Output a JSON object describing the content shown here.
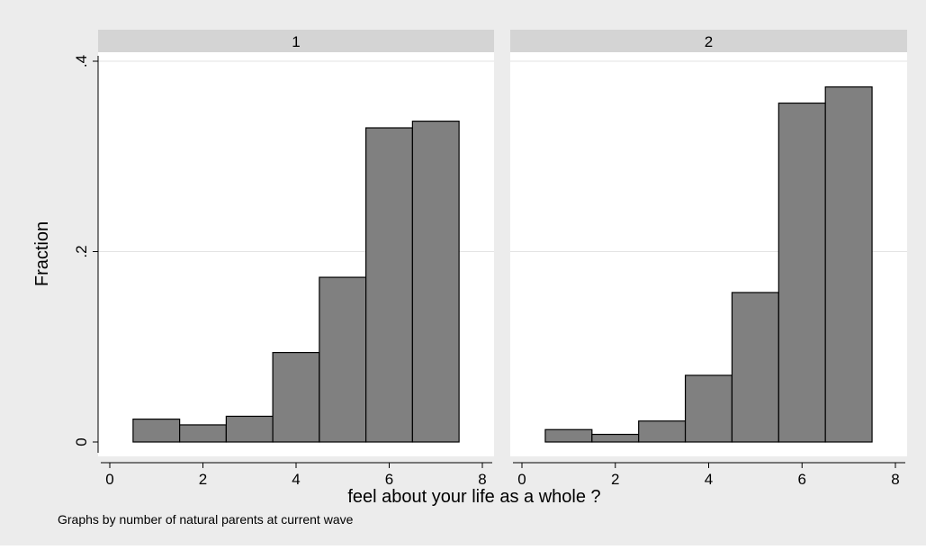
{
  "chart_data": {
    "type": "bar",
    "ylabel": "Fraction",
    "xlabel": "feel about your life as a whole ?",
    "note": "Graphs by number of natural parents at current wave",
    "xlim": [
      0,
      8
    ],
    "ylim": [
      0,
      0.4
    ],
    "x_ticks": [
      "0",
      "2",
      "4",
      "6",
      "8"
    ],
    "y_ticks": [
      {
        "value": 0,
        "label": "0"
      },
      {
        "value": 0.2,
        "label": ".2"
      },
      {
        "value": 0.4,
        "label": ".4"
      }
    ],
    "bin_centers": [
      1,
      2,
      3,
      4,
      5,
      6,
      7
    ],
    "bin_width": 1,
    "grid": true,
    "colors": {
      "bar": "#808080",
      "bar_edge": "#000000",
      "header": "#d4d4d4",
      "background": "#ececec"
    },
    "panels": [
      {
        "title": "1",
        "values": [
          0.024,
          0.018,
          0.027,
          0.094,
          0.173,
          0.33,
          0.337
        ]
      },
      {
        "title": "2",
        "values": [
          0.013,
          0.008,
          0.022,
          0.07,
          0.157,
          0.356,
          0.373
        ]
      }
    ]
  }
}
